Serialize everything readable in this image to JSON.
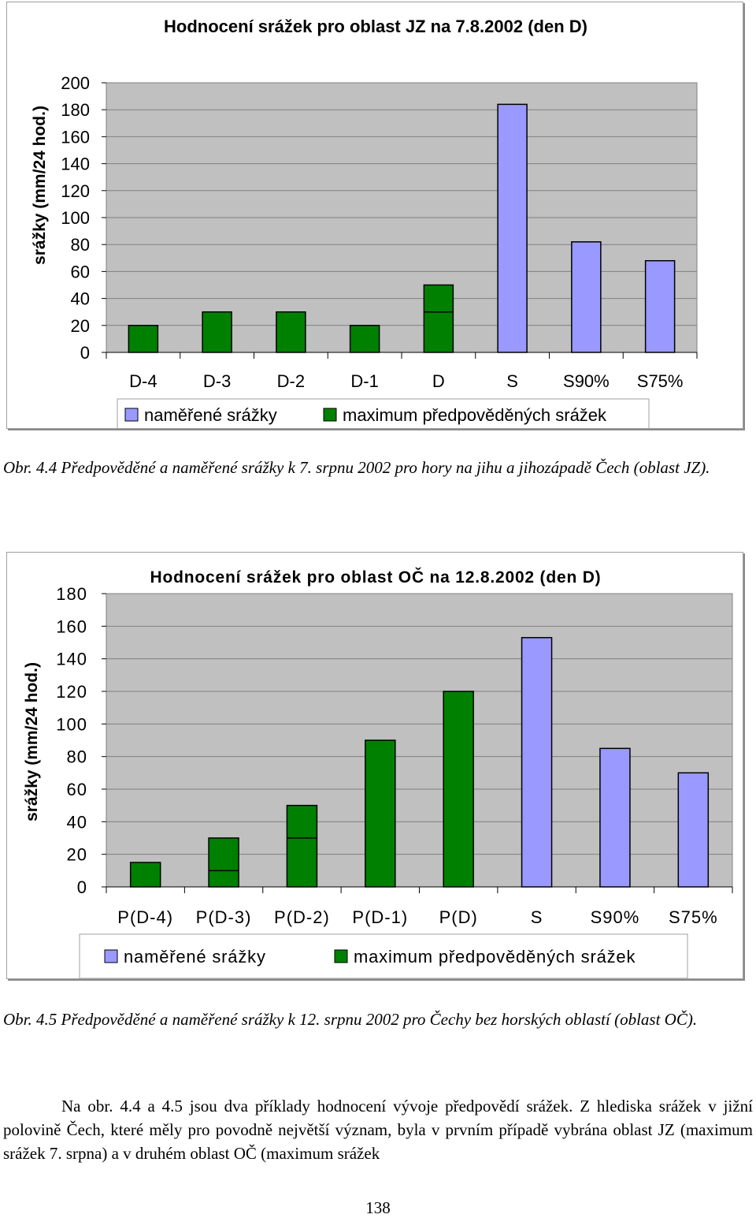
{
  "chart_data": [
    {
      "type": "bar",
      "title": "Hodnocení srážek  pro oblast  JZ na 7.8.2002 (den D)",
      "ylabel": "srážky (mm/24 hod.)",
      "xlabel": "",
      "ylim": [
        0,
        200
      ],
      "yticks": [
        "0",
        "20",
        "40",
        "60",
        "80",
        "100",
        "120",
        "140",
        "160",
        "180",
        "200"
      ],
      "categories": [
        "D-4",
        "D-3",
        "D-2",
        "D-1",
        "D",
        "S",
        "S90%",
        "S75%"
      ],
      "series": [
        {
          "name": "naměřené srážky",
          "color": "#9999ff",
          "values": [
            null,
            null,
            null,
            null,
            null,
            184,
            82,
            68
          ]
        },
        {
          "name": "maximum předpověděných srážek",
          "color": "#008000",
          "values": [
            20,
            30,
            30,
            20,
            50,
            null,
            null,
            null
          ]
        }
      ],
      "inner_divisions": [
        [],
        [],
        [],
        [],
        [
          30
        ],
        [],
        [],
        []
      ],
      "grid": true,
      "plot_background": "#c0c0c0",
      "legend_position": "bottom"
    },
    {
      "type": "bar",
      "title": "Hodnocení srážek pro oblast OČ na 12.8.2002 (den D)",
      "ylabel": "srážky (mm/24 hod.)",
      "xlabel": "",
      "ylim": [
        0,
        180
      ],
      "yticks": [
        "0",
        "20",
        "40",
        "60",
        "80",
        "100",
        "120",
        "140",
        "160",
        "180"
      ],
      "categories": [
        "P(D-4)",
        "P(D-3)",
        "P(D-2)",
        "P(D-1)",
        "P(D)",
        "S",
        "S90%",
        "S75%"
      ],
      "series": [
        {
          "name": "naměřené srážky",
          "color": "#9999ff",
          "values": [
            null,
            null,
            null,
            null,
            null,
            153,
            85,
            70
          ]
        },
        {
          "name": "maximum předpověděných srážek",
          "color": "#008000",
          "values": [
            15,
            30,
            50,
            90,
            120,
            null,
            null,
            null
          ]
        }
      ],
      "inner_divisions": [
        [],
        [
          10
        ],
        [
          30
        ],
        [],
        [],
        [],
        [],
        []
      ],
      "grid": true,
      "plot_background": "#c0c0c0",
      "legend_position": "bottom"
    }
  ],
  "caption1": "Obr. 4.4  Předpověděné a naměřené srážky k 7. srpnu 2002 pro hory na jihu a jihozápadě Čech (oblast JZ).",
  "caption2": "Obr. 4.5 Předpověděné a naměřené srážky k 12. srpnu 2002 pro Čechy bez horských oblastí (oblast OČ).",
  "paragraph": "Na obr. 4.4 a 4.5 jsou dva příklady hodnocení vývoje předpovědí srážek. Z hlediska srážek v jižní polovině Čech, které měly pro povodně největší význam, byla v prvním případě vybrána oblast JZ (maximum srážek 7. srpna) a v druhém oblast OČ (maximum srážek",
  "page_number": "138"
}
